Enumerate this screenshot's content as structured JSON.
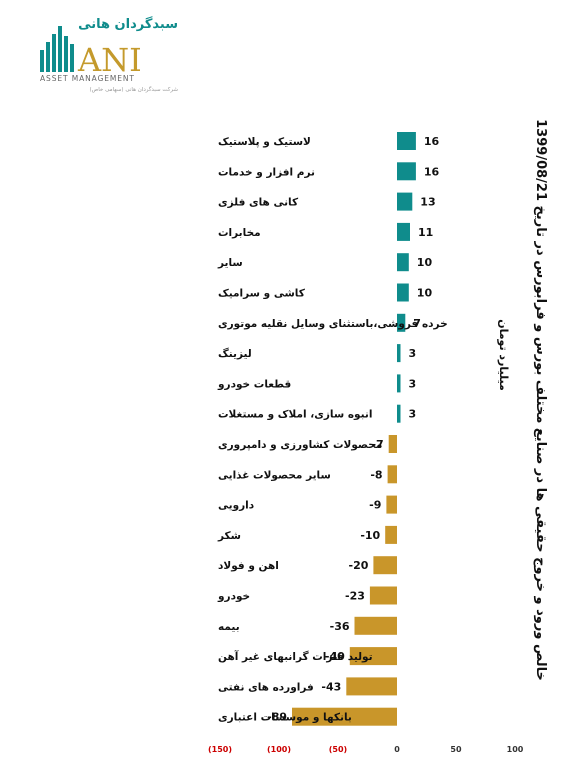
{
  "logo": {
    "brand_fa": "سبدگردان هانی",
    "brand_en": "ANI",
    "subtitle_en": "ASSET MANAGEMENT",
    "tagline_fa": "شرکت سبدگردان هانی (سهامی خاص)",
    "colors": {
      "teal": "#0f8c8c",
      "gold": "#c49a2c",
      "grey": "#8c8c8c"
    }
  },
  "chart_data": {
    "type": "bar",
    "orientation": "horizontal",
    "title": "خالص ورود و خروج حقیقی ها در صنایع مختلف بورس و فرابورس در تاریخ 1399/08/21",
    "unit_label": "میلیارد تومان",
    "categories": [
      "لاستیک و پلاستیک",
      "نرم افزار و خدمات",
      "کانی های فلزی",
      "مخابرات",
      "سایر",
      "کاشی و سرامیک",
      "خرده فروشی،باستثنای وسایل نقلیه موتوری",
      "لیزینگ",
      "قطعات خودرو",
      "انبوه سازی، املاک و مستغلات",
      "محصولات کشاورزی و دامپروری",
      "سایر محصولات غذایی",
      "دارویی",
      "شکر",
      "اهن و فولاد",
      "خودرو",
      "بیمه",
      "تولید فلزات گرانبهای غیر آهن",
      "فراورده های نفتی",
      "بانکها و موسسات اعتباری"
    ],
    "values": [
      16,
      16,
      13,
      11,
      10,
      10,
      7,
      3,
      3,
      3,
      -7,
      -8,
      -9,
      -10,
      -20,
      -23,
      -36,
      -40,
      -43,
      -89
    ],
    "value_labels": [
      "16",
      "16",
      "13",
      "11",
      "10",
      "10",
      "7",
      "3",
      "3",
      "3",
      "-7",
      "-8",
      "-9",
      "-10",
      "-20",
      "-23",
      "-36",
      "-40",
      "-43",
      "-89"
    ],
    "xlim": [
      -150,
      100
    ],
    "x_ticks": [
      {
        "value": -150,
        "label": "(150)"
      },
      {
        "value": -100,
        "label": "(100)"
      },
      {
        "value": -50,
        "label": "(50)"
      },
      {
        "value": 0,
        "label": "0"
      },
      {
        "value": 50,
        "label": "50"
      },
      {
        "value": 100,
        "label": "100"
      }
    ],
    "colors": {
      "positive": "#0f8c8c",
      "negative": "#c9962a",
      "negative_tick": "#cc0000",
      "positive_tick": "#333333"
    },
    "grid": false,
    "legend": "none"
  }
}
